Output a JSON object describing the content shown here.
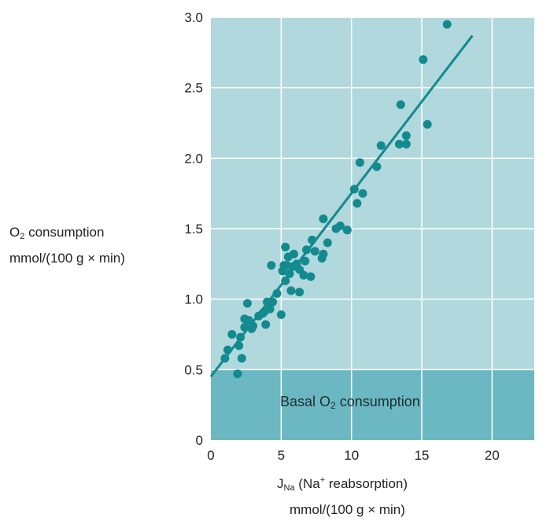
{
  "chart_data": {
    "type": "scatter",
    "title": "",
    "ylabel_line1_pre": "O",
    "ylabel_line1_sub": "2",
    "ylabel_line1_post": " consumption",
    "ylabel_line2": "mmol/(100 g × min)",
    "xlabel_line1_pre": "J",
    "xlabel_line1_sub": "Na",
    "xlabel_line1_mid": " (Na",
    "xlabel_line1_sup": "+",
    "xlabel_line1_post": " reabsorption)",
    "xlabel_line2": "mmol/(100 g × min)",
    "xlim": [
      0,
      23
    ],
    "ylim": [
      0,
      3.0
    ],
    "xticks": [
      0,
      5,
      10,
      15,
      20
    ],
    "xtick_labels": [
      "0",
      "5",
      "10",
      "15",
      "20"
    ],
    "yticks": [
      0,
      0.5,
      1.0,
      1.5,
      2.0,
      2.5,
      3.0
    ],
    "ytick_labels": [
      "0",
      "0.5",
      "1.0",
      "1.5",
      "2.0",
      "2.5",
      "3.0"
    ],
    "grid": true,
    "basal_region": {
      "y_max": 0.5,
      "label_pre": "Basal O",
      "label_sub": "2",
      "label_post": " consumption"
    },
    "fit_line": {
      "x": [
        0,
        18.6
      ],
      "y": [
        0.45,
        2.87
      ]
    },
    "points": [
      [
        16.8,
        2.95
      ],
      [
        15.1,
        2.7
      ],
      [
        15.4,
        2.24
      ],
      [
        13.5,
        2.38
      ],
      [
        13.4,
        2.1
      ],
      [
        13.9,
        2.1
      ],
      [
        13.9,
        2.16
      ],
      [
        12.1,
        2.09
      ],
      [
        11.8,
        1.94
      ],
      [
        10.6,
        1.97
      ],
      [
        10.2,
        1.78
      ],
      [
        10.8,
        1.75
      ],
      [
        10.4,
        1.68
      ],
      [
        9.7,
        1.49
      ],
      [
        9.2,
        1.52
      ],
      [
        8.9,
        1.5
      ],
      [
        8.3,
        1.4
      ],
      [
        8.0,
        1.57
      ],
      [
        8.0,
        1.32
      ],
      [
        7.9,
        1.29
      ],
      [
        7.4,
        1.34
      ],
      [
        7.2,
        1.42
      ],
      [
        7.1,
        1.16
      ],
      [
        6.8,
        1.35
      ],
      [
        6.7,
        1.27
      ],
      [
        6.6,
        1.17
      ],
      [
        6.3,
        1.21
      ],
      [
        6.1,
        1.25
      ],
      [
        6.3,
        1.05
      ],
      [
        5.9,
        1.32
      ],
      [
        5.8,
        1.23
      ],
      [
        5.7,
        1.06
      ],
      [
        5.6,
        1.18
      ],
      [
        5.5,
        1.3
      ],
      [
        5.4,
        1.24
      ],
      [
        5.3,
        1.37
      ],
      [
        5.2,
        1.24
      ],
      [
        5.3,
        1.13
      ],
      [
        5.1,
        1.2
      ],
      [
        5.0,
        0.89
      ],
      [
        4.7,
        1.04
      ],
      [
        4.4,
        0.98
      ],
      [
        4.3,
        1.24
      ],
      [
        4.2,
        0.93
      ],
      [
        4.0,
        0.98
      ],
      [
        3.8,
        0.91
      ],
      [
        3.9,
        0.82
      ],
      [
        3.7,
        0.9
      ],
      [
        3.4,
        0.88
      ],
      [
        3.0,
        0.81
      ],
      [
        2.9,
        0.79
      ],
      [
        2.7,
        0.85
      ],
      [
        2.6,
        0.97
      ],
      [
        2.4,
        0.8
      ],
      [
        2.4,
        0.86
      ],
      [
        2.1,
        0.73
      ],
      [
        2.0,
        0.67
      ],
      [
        2.2,
        0.58
      ],
      [
        1.9,
        0.47
      ],
      [
        1.5,
        0.75
      ],
      [
        1.2,
        0.64
      ],
      [
        1.0,
        0.58
      ]
    ],
    "colors": {
      "plot_bg": "#b0d8dd",
      "basal_bg": "#6bb8c2",
      "grid": "#ffffff",
      "marker": "#128a8e",
      "line": "#128a8e"
    }
  }
}
